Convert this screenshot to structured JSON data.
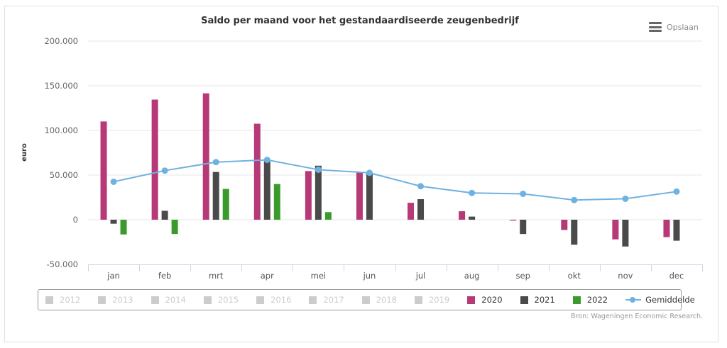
{
  "export_button": {
    "label": "Opslaan",
    "icon": "hamburger-menu-icon"
  },
  "credits": "Bron: Wageningen Economic Research.",
  "chart_data": {
    "type": "bar",
    "title": "Saldo per maand voor het gestandaardiseerde zeugenbedrijf",
    "xlabel": "",
    "ylabel": "euro",
    "ylim": [
      -50000,
      200000
    ],
    "yticks": [
      -50000,
      0,
      50000,
      100000,
      150000,
      200000
    ],
    "ytick_labels": [
      "-50.000",
      "0",
      "50.000",
      "100.000",
      "150.000",
      "200.000"
    ],
    "grid": true,
    "legend_position": "bottom",
    "categories": [
      "jan",
      "feb",
      "mrt",
      "apr",
      "mei",
      "jun",
      "jul",
      "aug",
      "sep",
      "okt",
      "nov",
      "dec"
    ],
    "series": [
      {
        "name": "2020",
        "type": "bar",
        "color": "#b73a78",
        "values": [
          110000,
          134500,
          141500,
          107500,
          54500,
          53000,
          19000,
          9500,
          -1000,
          -11500,
          -22000,
          -19500
        ]
      },
      {
        "name": "2021",
        "type": "bar",
        "color": "#4a4a4a",
        "values": [
          -4500,
          10000,
          53500,
          66000,
          60500,
          51500,
          23000,
          3500,
          -16000,
          -28000,
          -30000,
          -23500
        ]
      },
      {
        "name": "2022",
        "type": "bar",
        "color": "#3a9a2c",
        "values": [
          -16500,
          -16000,
          34500,
          40000,
          8500,
          null,
          null,
          null,
          null,
          null,
          null,
          null
        ]
      },
      {
        "name": "Gemiddelde",
        "type": "line",
        "color": "#6fb1e0",
        "values": [
          42500,
          55000,
          64500,
          67000,
          56000,
          52500,
          37500,
          30000,
          29000,
          22000,
          23500,
          31500
        ]
      }
    ],
    "legend": [
      {
        "name": "2012",
        "visible": false,
        "color": "#cccccc"
      },
      {
        "name": "2013",
        "visible": false,
        "color": "#cccccc"
      },
      {
        "name": "2014",
        "visible": false,
        "color": "#cccccc"
      },
      {
        "name": "2015",
        "visible": false,
        "color": "#cccccc"
      },
      {
        "name": "2016",
        "visible": false,
        "color": "#cccccc"
      },
      {
        "name": "2017",
        "visible": false,
        "color": "#cccccc"
      },
      {
        "name": "2018",
        "visible": false,
        "color": "#cccccc"
      },
      {
        "name": "2019",
        "visible": false,
        "color": "#cccccc"
      },
      {
        "name": "2020",
        "visible": true,
        "color": "#b73a78"
      },
      {
        "name": "2021",
        "visible": true,
        "color": "#4a4a4a"
      },
      {
        "name": "2022",
        "visible": true,
        "color": "#3a9a2c"
      }
    ],
    "line_legend": {
      "name": "Gemiddelde",
      "color": "#6fb1e0"
    }
  }
}
